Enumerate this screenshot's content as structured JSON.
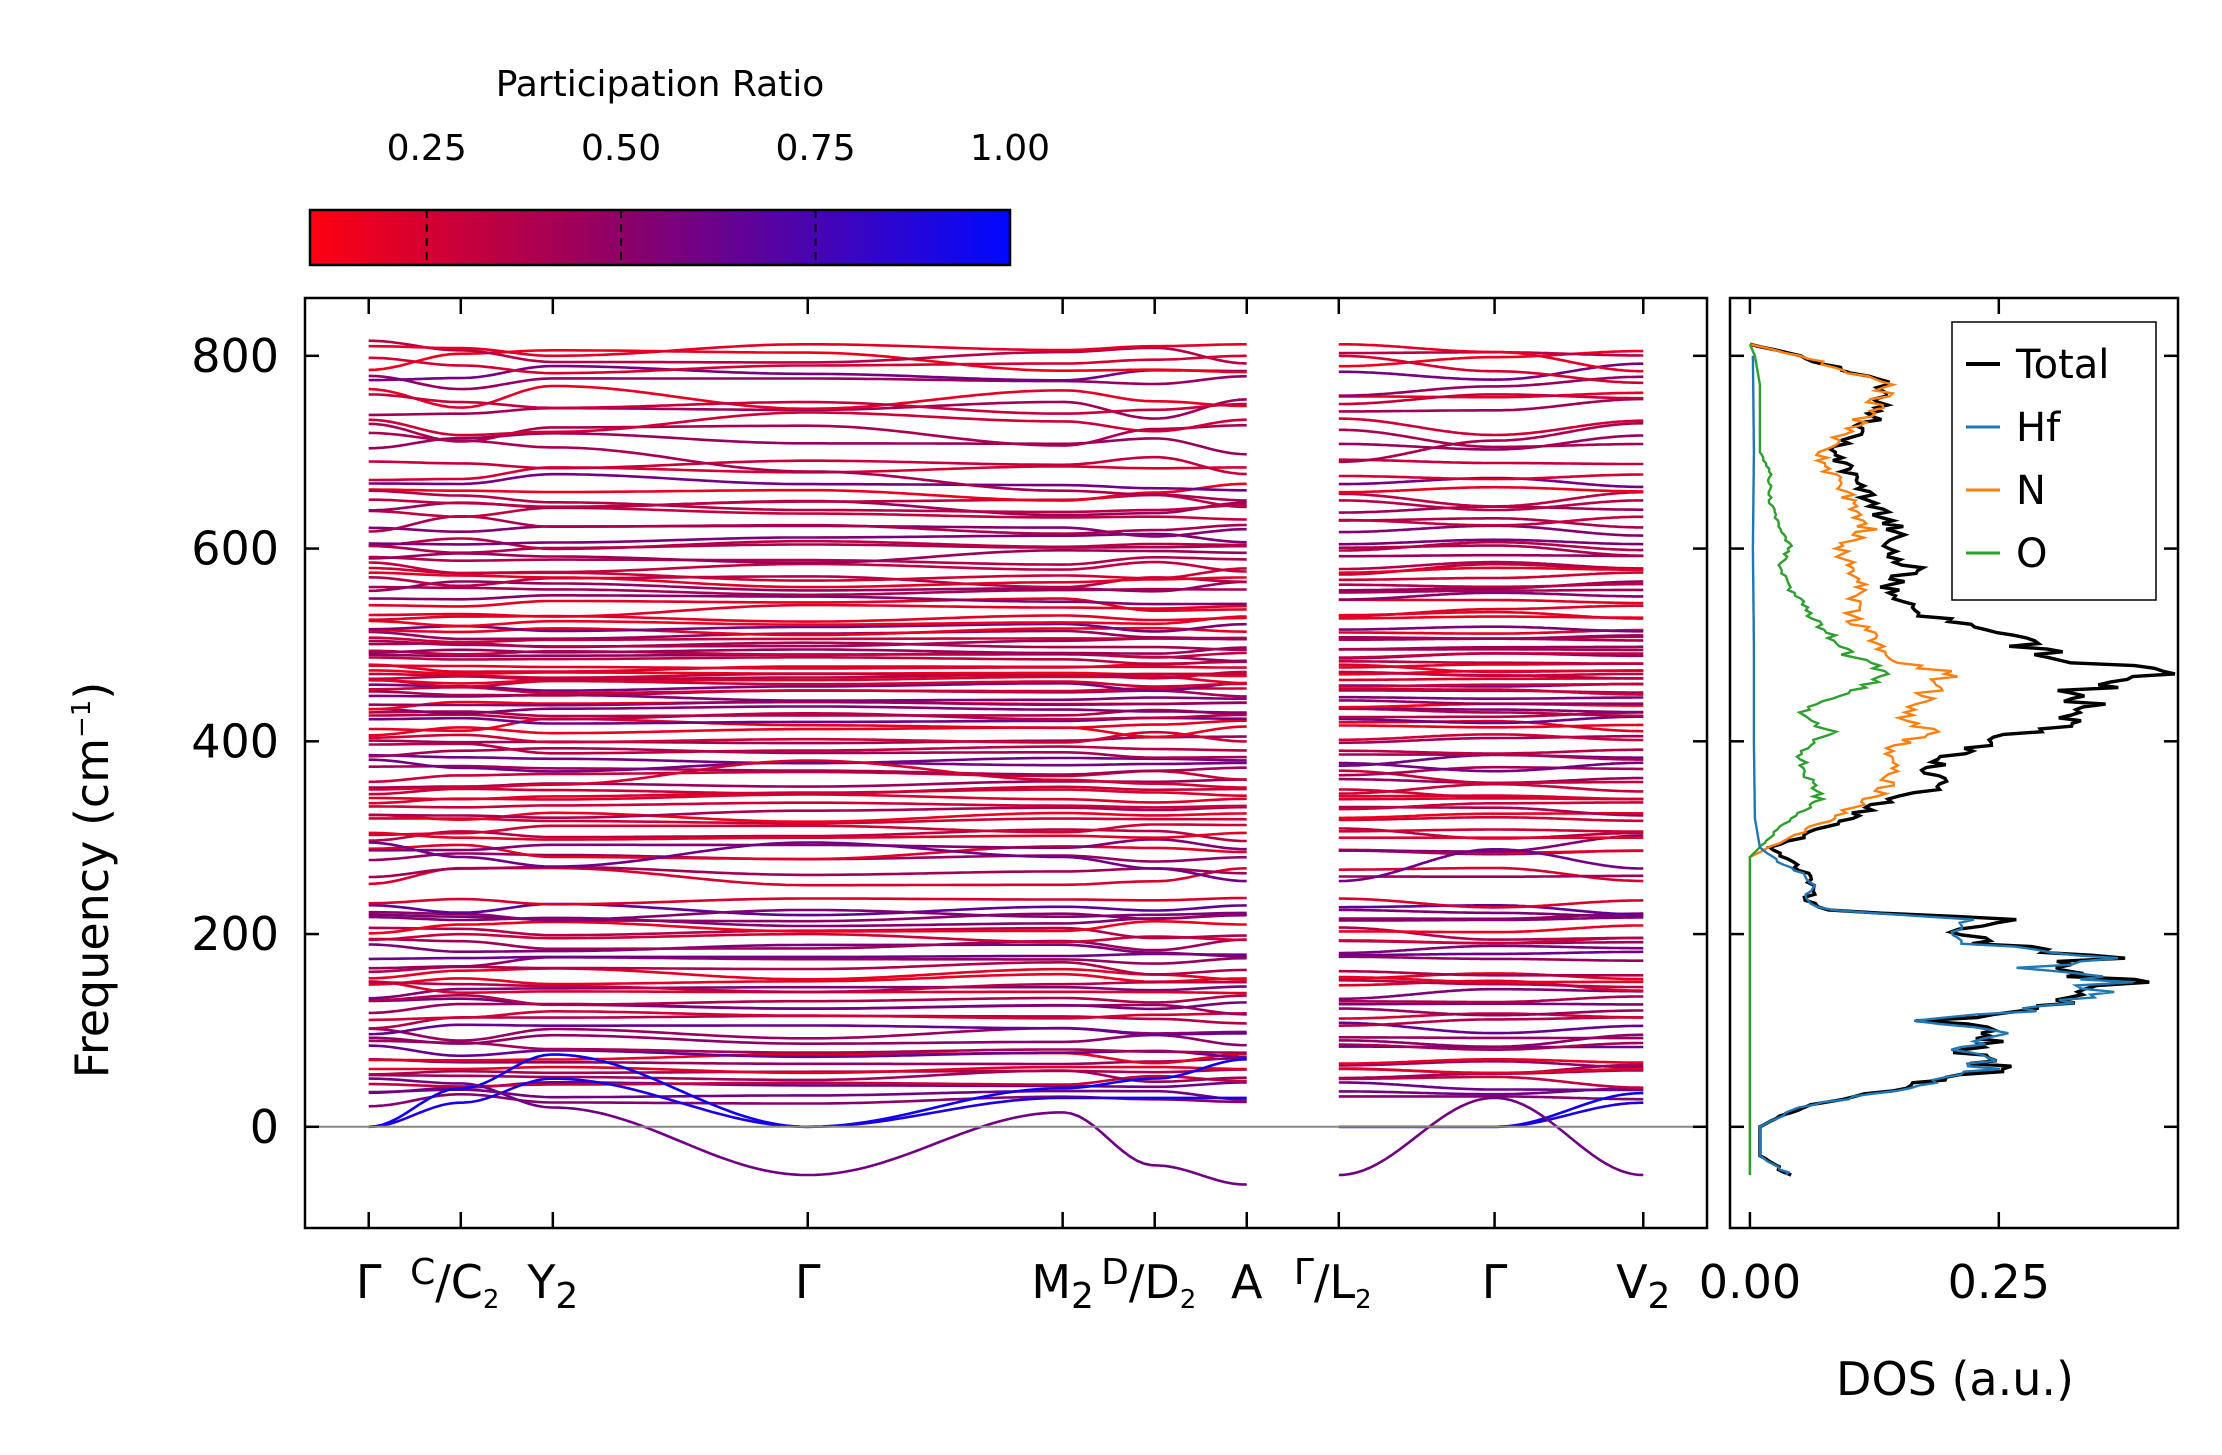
{
  "chart_data": [
    {
      "type": "line",
      "subtype": "phonon-band-structure",
      "ylabel_main": "Frequency (cm",
      "ylabel_sup": "−1",
      "ylabel_close": ")",
      "ylim": [
        -105,
        860
      ],
      "yticks": [
        {
          "v": 0,
          "label": "0"
        },
        {
          "v": 200,
          "label": "200"
        },
        {
          "v": 400,
          "label": "400"
        },
        {
          "v": 600,
          "label": "600"
        },
        {
          "v": 800,
          "label": "800"
        }
      ],
      "kpoints": [
        {
          "label": "Γ",
          "sub": "",
          "x": 0
        },
        {
          "label": "",
          "sub": "",
          "x": 0.13
        },
        {
          "label": "Y",
          "sub": "2",
          "x": 0.26
        },
        {
          "label": "Γ",
          "sub": "",
          "x": 0.62
        },
        {
          "label": "M",
          "sub": "2",
          "x": 0.98
        },
        {
          "label": "",
          "sub": "",
          "x": 1.11
        },
        {
          "label": "A",
          "sub": "",
          "x": 1.24
        },
        {
          "label": "",
          "sub": "",
          "x": 1.37
        },
        {
          "label": "Γ",
          "sub": "",
          "x": 1.59
        },
        {
          "label": "V",
          "sub": "2",
          "x": 1.8
        }
      ],
      "fraction_labels": [
        {
          "top": "C",
          "bottom": "C",
          "bottom_sub": "2",
          "x": 0.13
        },
        {
          "top": "D",
          "bottom": "D",
          "bottom_sub": "2",
          "x": 1.11
        },
        {
          "top": "Γ",
          "bottom": "L",
          "bottom_sub": "2",
          "x": 1.37
        }
      ],
      "x_range": [
        -0.09,
        1.89
      ],
      "segment_breaks": [
        1.24,
        1.37
      ],
      "zero_line": 0,
      "color_by": "Participation Ratio",
      "colormap": {
        "low": "#ff0000",
        "high": "#0000ff"
      },
      "sample_bands": [
        {
          "freqs_at_kpoints": [
            810,
            808,
            800,
            812,
            806,
            810,
            812,
            812,
            804,
            784
          ],
          "pr": 0.2
        },
        {
          "freqs_at_kpoints": [
            798,
            790,
            782,
            790,
            792,
            796,
            800,
            800,
            784,
            772
          ],
          "pr": 0.25
        },
        {
          "freqs_at_kpoints": [
            760,
            752,
            746,
            752,
            740,
            744,
            750,
            750,
            760,
            756
          ],
          "pr": 0.3
        },
        {
          "freqs_at_kpoints": [
            720,
            712,
            705,
            680,
            660,
            656,
            650,
            690,
            712,
            730
          ],
          "pr": 0.4
        },
        {
          "freqs_at_kpoints": [
            660,
            655,
            648,
            640,
            638,
            640,
            645,
            650,
            640,
            650
          ],
          "pr": 0.35
        },
        {
          "freqs_at_kpoints": [
            575,
            572,
            570,
            560,
            565,
            568,
            570,
            575,
            580,
            578
          ],
          "pr": 0.2
        },
        {
          "freqs_at_kpoints": [
            470,
            468,
            466,
            470,
            468,
            470,
            470,
            472,
            468,
            470
          ],
          "pr": 0.3
        },
        {
          "freqs_at_kpoints": [
            350,
            352,
            355,
            380,
            360,
            356,
            352,
            350,
            342,
            340
          ],
          "pr": 0.25
        },
        {
          "freqs_at_kpoints": [
            305,
            300,
            298,
            300,
            302,
            300,
            305,
            300,
            300,
            300
          ],
          "pr": 0.2
        },
        {
          "freqs_at_kpoints": [
            295,
            280,
            270,
            295,
            280,
            268,
            255,
            255,
            288,
            268
          ],
          "pr": 0.6
        },
        {
          "freqs_at_kpoints": [
            220,
            218,
            215,
            225,
            218,
            220,
            222,
            225,
            222,
            218
          ],
          "pr": 0.55
        },
        {
          "freqs_at_kpoints": [
            150,
            148,
            146,
            140,
            148,
            150,
            150,
            152,
            148,
            145
          ],
          "pr": 0.35
        },
        {
          "freqs_at_kpoints": [
            60,
            60,
            62,
            56,
            62,
            62,
            60,
            60,
            56,
            60
          ],
          "pr": 0.2
        },
        {
          "freqs_at_kpoints": [
            0,
            40,
            75,
            0,
            40,
            50,
            70,
            0,
            0,
            35
          ],
          "pr": 0.95
        },
        {
          "freqs_at_kpoints": [
            0,
            25,
            50,
            0,
            30,
            30,
            30,
            0,
            0,
            25
          ],
          "pr": 0.9
        },
        {
          "freqs_at_kpoints": [
            50,
            45,
            20,
            -50,
            15,
            -40,
            -60,
            -50,
            30,
            -50
          ],
          "pr": 0.6
        }
      ]
    },
    {
      "type": "line",
      "subtype": "density-of-states",
      "xlabel": "DOS (a.u.)",
      "xlim": [
        -0.02,
        0.43
      ],
      "xticks": [
        {
          "v": 0.0,
          "label": "0.00"
        },
        {
          "v": 0.25,
          "label": "0.25"
        }
      ],
      "ylim": [
        -105,
        860
      ],
      "legend_position": "top-right",
      "series": [
        {
          "name": "Total",
          "color": "#000000",
          "points": [
            [
              0.04,
              -50
            ],
            [
              0.01,
              -30
            ],
            [
              0.01,
              0
            ],
            [
              0.05,
              20
            ],
            [
              0.15,
              40
            ],
            [
              0.25,
              60
            ],
            [
              0.22,
              80
            ],
            [
              0.26,
              100
            ],
            [
              0.18,
              110
            ],
            [
              0.28,
              120
            ],
            [
              0.35,
              140
            ],
            [
              0.37,
              150
            ],
            [
              0.3,
              165
            ],
            [
              0.35,
              175
            ],
            [
              0.24,
              190
            ],
            [
              0.2,
              205
            ],
            [
              0.25,
              215
            ],
            [
              0.08,
              225
            ],
            [
              0.06,
              235
            ],
            [
              0.06,
              260
            ],
            [
              0.04,
              275
            ],
            [
              0.02,
              290
            ],
            [
              0.05,
              300
            ],
            [
              0.1,
              320
            ],
            [
              0.14,
              340
            ],
            [
              0.2,
              350
            ],
            [
              0.18,
              370
            ],
            [
              0.22,
              390
            ],
            [
              0.28,
              410
            ],
            [
              0.35,
              430
            ],
            [
              0.32,
              450
            ],
            [
              0.42,
              470
            ],
            [
              0.3,
              490
            ],
            [
              0.25,
              510
            ],
            [
              0.18,
              530
            ],
            [
              0.14,
              560
            ],
            [
              0.16,
              580
            ],
            [
              0.14,
              600
            ],
            [
              0.15,
              620
            ],
            [
              0.12,
              650
            ],
            [
              0.1,
              680
            ],
            [
              0.08,
              700
            ],
            [
              0.13,
              740
            ],
            [
              0.14,
              770
            ],
            [
              0.05,
              800
            ],
            [
              0.0,
              812
            ]
          ]
        },
        {
          "name": "Hf",
          "color": "#1f77b4",
          "points": [
            [
              0.04,
              -50
            ],
            [
              0.01,
              -30
            ],
            [
              0.01,
              0
            ],
            [
              0.05,
              20
            ],
            [
              0.15,
              40
            ],
            [
              0.24,
              60
            ],
            [
              0.22,
              80
            ],
            [
              0.25,
              100
            ],
            [
              0.17,
              110
            ],
            [
              0.27,
              120
            ],
            [
              0.34,
              140
            ],
            [
              0.36,
              150
            ],
            [
              0.29,
              165
            ],
            [
              0.34,
              175
            ],
            [
              0.23,
              190
            ],
            [
              0.2,
              205
            ],
            [
              0.24,
              215
            ],
            [
              0.08,
              225
            ],
            [
              0.06,
              235
            ],
            [
              0.06,
              260
            ],
            [
              0.03,
              275
            ],
            [
              0.01,
              290
            ],
            [
              0.005,
              320
            ],
            [
              0.004,
              400
            ],
            [
              0.004,
              500
            ],
            [
              0.003,
              600
            ],
            [
              0.004,
              700
            ],
            [
              0.003,
              800
            ]
          ]
        },
        {
          "name": "N",
          "color": "#ff7f0e",
          "points": [
            [
              0.0,
              -50
            ],
            [
              0.0,
              280
            ],
            [
              0.04,
              300
            ],
            [
              0.08,
              320
            ],
            [
              0.12,
              340
            ],
            [
              0.14,
              360
            ],
            [
              0.14,
              390
            ],
            [
              0.18,
              410
            ],
            [
              0.15,
              430
            ],
            [
              0.18,
              450
            ],
            [
              0.2,
              470
            ],
            [
              0.13,
              490
            ],
            [
              0.12,
              510
            ],
            [
              0.1,
              530
            ],
            [
              0.11,
              560
            ],
            [
              0.1,
              580
            ],
            [
              0.09,
              600
            ],
            [
              0.12,
              620
            ],
            [
              0.1,
              650
            ],
            [
              0.08,
              680
            ],
            [
              0.07,
              700
            ],
            [
              0.12,
              740
            ],
            [
              0.14,
              770
            ],
            [
              0.05,
              800
            ],
            [
              0.0,
              812
            ]
          ]
        },
        {
          "name": "O",
          "color": "#2ca02c",
          "points": [
            [
              0.0,
              -50
            ],
            [
              0.0,
              280
            ],
            [
              0.02,
              300
            ],
            [
              0.04,
              320
            ],
            [
              0.07,
              340
            ],
            [
              0.06,
              360
            ],
            [
              0.05,
              390
            ],
            [
              0.08,
              410
            ],
            [
              0.05,
              430
            ],
            [
              0.1,
              450
            ],
            [
              0.14,
              470
            ],
            [
              0.1,
              490
            ],
            [
              0.08,
              510
            ],
            [
              0.06,
              530
            ],
            [
              0.04,
              560
            ],
            [
              0.03,
              580
            ],
            [
              0.04,
              600
            ],
            [
              0.03,
              620
            ],
            [
              0.02,
              650
            ],
            [
              0.02,
              680
            ],
            [
              0.01,
              700
            ],
            [
              0.01,
              740
            ],
            [
              0.01,
              770
            ],
            [
              0.005,
              800
            ],
            [
              0.0,
              812
            ]
          ]
        }
      ]
    },
    {
      "type": "colorbar",
      "title": "Participation Ratio",
      "range": [
        0.1,
        1.0
      ],
      "ticks": [
        {
          "v": 0.25,
          "label": "0.25"
        },
        {
          "v": 0.5,
          "label": "0.50"
        },
        {
          "v": 0.75,
          "label": "0.75"
        },
        {
          "v": 1.0,
          "label": "1.00"
        }
      ],
      "colors": {
        "low": "#ff0000",
        "mid": "#8c0070",
        "high": "#0000ff"
      }
    }
  ]
}
